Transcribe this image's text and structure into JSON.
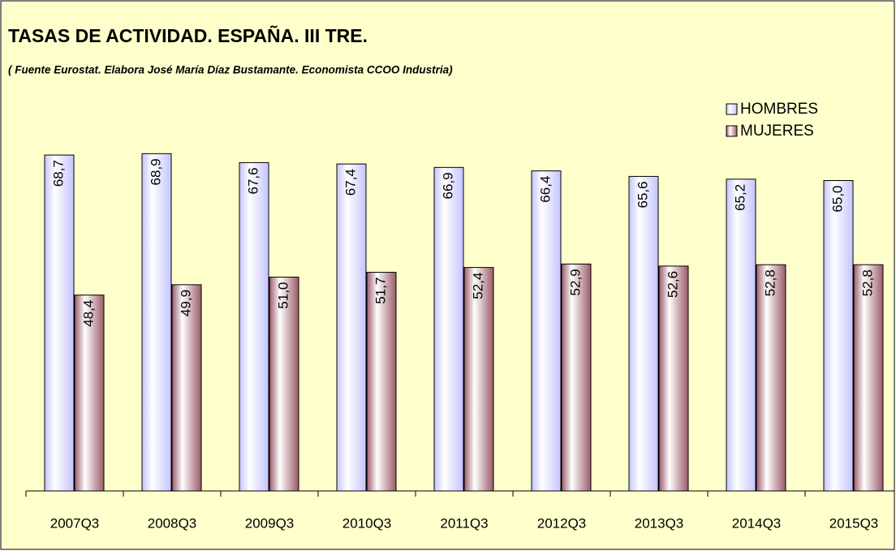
{
  "chart_data": {
    "type": "bar",
    "title": "TASAS DE ACTIVIDAD. ESPAÑA. III TRE.",
    "subtitle": "( Fuente Eurostat. Elabora José María Díaz Bustamante. Economista CCOO Industria)",
    "categories": [
      "2007Q3",
      "2008Q3",
      "2009Q3",
      "2010Q3",
      "2011Q3",
      "2012Q3",
      "2013Q3",
      "2014Q3",
      "2015Q3"
    ],
    "series": [
      {
        "name": "HOMBRES",
        "color": "#c4c4ff",
        "values": [
          68.7,
          68.9,
          67.6,
          67.4,
          66.9,
          66.4,
          65.6,
          65.2,
          65.0
        ],
        "value_labels": [
          "68,7",
          "68,9",
          "67,6",
          "67,4",
          "66,9",
          "66,4",
          "65,6",
          "65,2",
          "65,0"
        ]
      },
      {
        "name": "MUJERES",
        "color": "#9a5a68",
        "values": [
          48.4,
          49.9,
          51.0,
          51.7,
          52.4,
          52.9,
          52.6,
          52.8,
          52.8
        ],
        "value_labels": [
          "48,4",
          "49,9",
          "51,0",
          "51,7",
          "52,4",
          "52,9",
          "52,6",
          "52,8",
          "52,8"
        ]
      }
    ],
    "ylim": [
      20,
      70
    ],
    "legend": "upper right"
  }
}
